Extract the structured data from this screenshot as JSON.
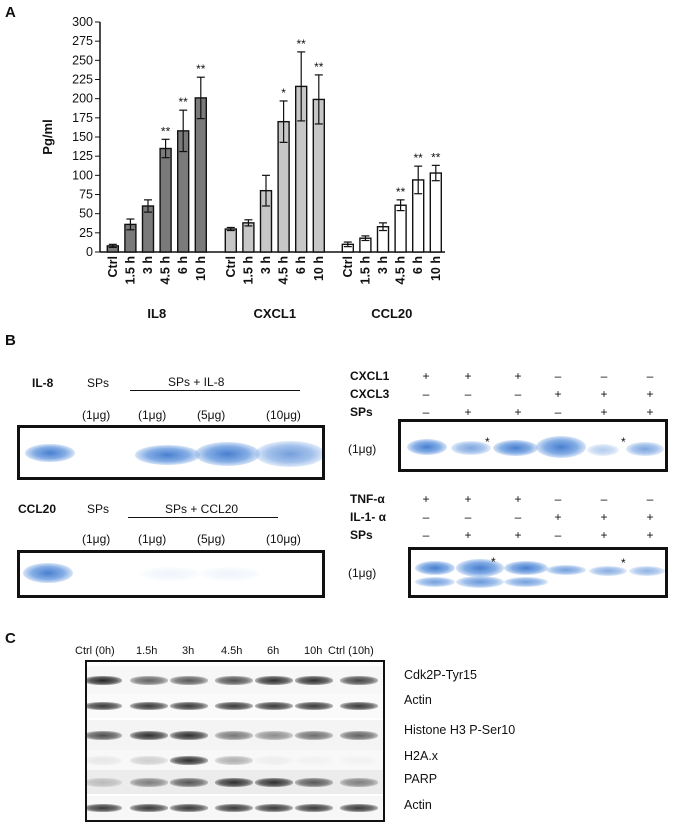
{
  "panel_a": {
    "letter": "A",
    "chart_data": {
      "type": "bar",
      "ylabel": "Pg/ml",
      "ylim": [
        0,
        300
      ],
      "yticks": [
        0,
        25,
        50,
        75,
        100,
        125,
        150,
        175,
        200,
        225,
        250,
        275,
        300
      ],
      "categories": [
        "Ctrl",
        "1.5 h",
        "3 h",
        "4.5 h",
        "6 h",
        "10 h"
      ],
      "groups": [
        {
          "name": "IL8",
          "fill": "#7a7a7a",
          "values": [
            8,
            36,
            60,
            135,
            158,
            201
          ],
          "errors": [
            2,
            7,
            8,
            12,
            27,
            27
          ],
          "sig": [
            "",
            "",
            "",
            "**",
            "**",
            "**"
          ]
        },
        {
          "name": "CXCL1",
          "fill": "#c7c7c7",
          "values": [
            30,
            38,
            80,
            170,
            216,
            199
          ],
          "errors": [
            2,
            4,
            20,
            27,
            45,
            32
          ],
          "sig": [
            "",
            "",
            "",
            "*",
            "**",
            "**"
          ]
        },
        {
          "name": "CCL20",
          "fill": "#ffffff",
          "values": [
            10,
            18,
            33,
            61,
            94,
            103
          ],
          "errors": [
            3,
            3,
            5,
            7,
            18,
            10
          ],
          "sig": [
            "",
            "",
            "",
            "**",
            "**",
            "**"
          ]
        }
      ]
    }
  },
  "panel_b": {
    "letter": "B",
    "il8": {
      "title": "IL-8",
      "sps": "SPs",
      "group": "SPs + IL-8",
      "doses": [
        "(1μg)",
        "(1μg)",
        "(5μg)",
        "(10μg)"
      ]
    },
    "ccl20": {
      "title": "CCL20",
      "sps": "SPs",
      "group": "SPs + CCL20",
      "doses": [
        "(1μg)",
        "(1μg)",
        "(5μg)",
        "(10μg)"
      ]
    },
    "cxcl": {
      "rows": [
        {
          "label": "CXCL1",
          "symbols": [
            "+",
            "+",
            "+",
            "–",
            "–",
            "–"
          ]
        },
        {
          "label": "CXCL3",
          "symbols": [
            "–",
            "–",
            "–",
            "+",
            "+",
            "+"
          ]
        },
        {
          "label": "SPs",
          "symbols": [
            "–",
            "+",
            "+",
            "–",
            "+",
            "+"
          ]
        }
      ],
      "dose": "(1μg)",
      "star": "*"
    },
    "tnf": {
      "rows": [
        {
          "label": "TNF-α",
          "symbols": [
            "+",
            "+",
            "+",
            "–",
            "–",
            "–"
          ]
        },
        {
          "label": "IL-1- α",
          "symbols": [
            "–",
            "–",
            "–",
            "+",
            "+",
            "+"
          ]
        },
        {
          "label": "SPs",
          "symbols": [
            "–",
            "+",
            "+",
            "–",
            "+",
            "+"
          ]
        }
      ],
      "dose": "(1μg)",
      "star": "*"
    }
  },
  "panel_c": {
    "letter": "C",
    "lanes": [
      "Ctrl (0h)",
      "1.5h",
      "3h",
      "4.5h",
      "6h",
      "10h",
      "Ctrl (10h)"
    ],
    "rows": [
      "Cdk2P-Tyr15",
      "Actin",
      "Histone H3 P-Ser10",
      "H2A.x",
      "PARP",
      "Actin"
    ]
  }
}
